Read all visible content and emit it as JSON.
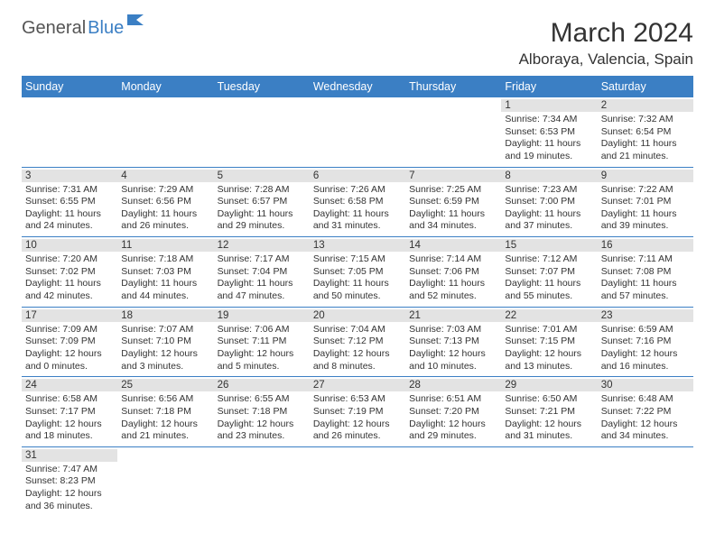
{
  "logo": {
    "part1": "General",
    "part2": "Blue"
  },
  "title": "March 2024",
  "location": "Alboraya, Valencia, Spain",
  "weekdays": [
    "Sunday",
    "Monday",
    "Tuesday",
    "Wednesday",
    "Thursday",
    "Friday",
    "Saturday"
  ],
  "colors": {
    "header_bg": "#3b7fc4",
    "header_fg": "#ffffff",
    "daynum_bg": "#e3e3e3",
    "row_border": "#3b7fc4",
    "logo_accent": "#3b7fc4"
  },
  "weeks": [
    [
      null,
      null,
      null,
      null,
      null,
      {
        "day": "1",
        "sunrise": "Sunrise: 7:34 AM",
        "sunset": "Sunset: 6:53 PM",
        "daylight1": "Daylight: 11 hours",
        "daylight2": "and 19 minutes."
      },
      {
        "day": "2",
        "sunrise": "Sunrise: 7:32 AM",
        "sunset": "Sunset: 6:54 PM",
        "daylight1": "Daylight: 11 hours",
        "daylight2": "and 21 minutes."
      }
    ],
    [
      {
        "day": "3",
        "sunrise": "Sunrise: 7:31 AM",
        "sunset": "Sunset: 6:55 PM",
        "daylight1": "Daylight: 11 hours",
        "daylight2": "and 24 minutes."
      },
      {
        "day": "4",
        "sunrise": "Sunrise: 7:29 AM",
        "sunset": "Sunset: 6:56 PM",
        "daylight1": "Daylight: 11 hours",
        "daylight2": "and 26 minutes."
      },
      {
        "day": "5",
        "sunrise": "Sunrise: 7:28 AM",
        "sunset": "Sunset: 6:57 PM",
        "daylight1": "Daylight: 11 hours",
        "daylight2": "and 29 minutes."
      },
      {
        "day": "6",
        "sunrise": "Sunrise: 7:26 AM",
        "sunset": "Sunset: 6:58 PM",
        "daylight1": "Daylight: 11 hours",
        "daylight2": "and 31 minutes."
      },
      {
        "day": "7",
        "sunrise": "Sunrise: 7:25 AM",
        "sunset": "Sunset: 6:59 PM",
        "daylight1": "Daylight: 11 hours",
        "daylight2": "and 34 minutes."
      },
      {
        "day": "8",
        "sunrise": "Sunrise: 7:23 AM",
        "sunset": "Sunset: 7:00 PM",
        "daylight1": "Daylight: 11 hours",
        "daylight2": "and 37 minutes."
      },
      {
        "day": "9",
        "sunrise": "Sunrise: 7:22 AM",
        "sunset": "Sunset: 7:01 PM",
        "daylight1": "Daylight: 11 hours",
        "daylight2": "and 39 minutes."
      }
    ],
    [
      {
        "day": "10",
        "sunrise": "Sunrise: 7:20 AM",
        "sunset": "Sunset: 7:02 PM",
        "daylight1": "Daylight: 11 hours",
        "daylight2": "and 42 minutes."
      },
      {
        "day": "11",
        "sunrise": "Sunrise: 7:18 AM",
        "sunset": "Sunset: 7:03 PM",
        "daylight1": "Daylight: 11 hours",
        "daylight2": "and 44 minutes."
      },
      {
        "day": "12",
        "sunrise": "Sunrise: 7:17 AM",
        "sunset": "Sunset: 7:04 PM",
        "daylight1": "Daylight: 11 hours",
        "daylight2": "and 47 minutes."
      },
      {
        "day": "13",
        "sunrise": "Sunrise: 7:15 AM",
        "sunset": "Sunset: 7:05 PM",
        "daylight1": "Daylight: 11 hours",
        "daylight2": "and 50 minutes."
      },
      {
        "day": "14",
        "sunrise": "Sunrise: 7:14 AM",
        "sunset": "Sunset: 7:06 PM",
        "daylight1": "Daylight: 11 hours",
        "daylight2": "and 52 minutes."
      },
      {
        "day": "15",
        "sunrise": "Sunrise: 7:12 AM",
        "sunset": "Sunset: 7:07 PM",
        "daylight1": "Daylight: 11 hours",
        "daylight2": "and 55 minutes."
      },
      {
        "day": "16",
        "sunrise": "Sunrise: 7:11 AM",
        "sunset": "Sunset: 7:08 PM",
        "daylight1": "Daylight: 11 hours",
        "daylight2": "and 57 minutes."
      }
    ],
    [
      {
        "day": "17",
        "sunrise": "Sunrise: 7:09 AM",
        "sunset": "Sunset: 7:09 PM",
        "daylight1": "Daylight: 12 hours",
        "daylight2": "and 0 minutes."
      },
      {
        "day": "18",
        "sunrise": "Sunrise: 7:07 AM",
        "sunset": "Sunset: 7:10 PM",
        "daylight1": "Daylight: 12 hours",
        "daylight2": "and 3 minutes."
      },
      {
        "day": "19",
        "sunrise": "Sunrise: 7:06 AM",
        "sunset": "Sunset: 7:11 PM",
        "daylight1": "Daylight: 12 hours",
        "daylight2": "and 5 minutes."
      },
      {
        "day": "20",
        "sunrise": "Sunrise: 7:04 AM",
        "sunset": "Sunset: 7:12 PM",
        "daylight1": "Daylight: 12 hours",
        "daylight2": "and 8 minutes."
      },
      {
        "day": "21",
        "sunrise": "Sunrise: 7:03 AM",
        "sunset": "Sunset: 7:13 PM",
        "daylight1": "Daylight: 12 hours",
        "daylight2": "and 10 minutes."
      },
      {
        "day": "22",
        "sunrise": "Sunrise: 7:01 AM",
        "sunset": "Sunset: 7:15 PM",
        "daylight1": "Daylight: 12 hours",
        "daylight2": "and 13 minutes."
      },
      {
        "day": "23",
        "sunrise": "Sunrise: 6:59 AM",
        "sunset": "Sunset: 7:16 PM",
        "daylight1": "Daylight: 12 hours",
        "daylight2": "and 16 minutes."
      }
    ],
    [
      {
        "day": "24",
        "sunrise": "Sunrise: 6:58 AM",
        "sunset": "Sunset: 7:17 PM",
        "daylight1": "Daylight: 12 hours",
        "daylight2": "and 18 minutes."
      },
      {
        "day": "25",
        "sunrise": "Sunrise: 6:56 AM",
        "sunset": "Sunset: 7:18 PM",
        "daylight1": "Daylight: 12 hours",
        "daylight2": "and 21 minutes."
      },
      {
        "day": "26",
        "sunrise": "Sunrise: 6:55 AM",
        "sunset": "Sunset: 7:18 PM",
        "daylight1": "Daylight: 12 hours",
        "daylight2": "and 23 minutes."
      },
      {
        "day": "27",
        "sunrise": "Sunrise: 6:53 AM",
        "sunset": "Sunset: 7:19 PM",
        "daylight1": "Daylight: 12 hours",
        "daylight2": "and 26 minutes."
      },
      {
        "day": "28",
        "sunrise": "Sunrise: 6:51 AM",
        "sunset": "Sunset: 7:20 PM",
        "daylight1": "Daylight: 12 hours",
        "daylight2": "and 29 minutes."
      },
      {
        "day": "29",
        "sunrise": "Sunrise: 6:50 AM",
        "sunset": "Sunset: 7:21 PM",
        "daylight1": "Daylight: 12 hours",
        "daylight2": "and 31 minutes."
      },
      {
        "day": "30",
        "sunrise": "Sunrise: 6:48 AM",
        "sunset": "Sunset: 7:22 PM",
        "daylight1": "Daylight: 12 hours",
        "daylight2": "and 34 minutes."
      }
    ],
    [
      {
        "day": "31",
        "sunrise": "Sunrise: 7:47 AM",
        "sunset": "Sunset: 8:23 PM",
        "daylight1": "Daylight: 12 hours",
        "daylight2": "and 36 minutes."
      },
      null,
      null,
      null,
      null,
      null,
      null
    ]
  ]
}
